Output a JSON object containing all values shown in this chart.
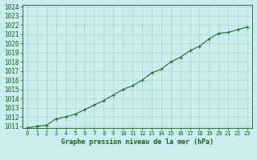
{
  "x": [
    0,
    1,
    2,
    3,
    4,
    5,
    6,
    7,
    8,
    9,
    10,
    11,
    12,
    13,
    14,
    15,
    16,
    17,
    18,
    19,
    20,
    21,
    22,
    23
  ],
  "y": [
    1010.8,
    1011.0,
    1011.1,
    1011.8,
    1012.0,
    1012.3,
    1012.8,
    1013.3,
    1013.8,
    1014.4,
    1015.0,
    1015.4,
    1016.0,
    1016.8,
    1017.2,
    1018.0,
    1018.5,
    1019.2,
    1019.7,
    1020.5,
    1021.1,
    1021.2,
    1021.5,
    1021.8
  ],
  "line_color": "#2d6a2d",
  "marker": "+",
  "bg_color": "#c8eef0",
  "grid_color": "#b0d8db",
  "xlabel": "Graphe pression niveau de la mer (hPa)",
  "xlabel_color": "#1a5c1a",
  "tick_color": "#1a5c1a",
  "ylim_min": 1011,
  "ylim_max": 1024,
  "xlim_min": 0,
  "xlim_max": 23,
  "yticks": [
    1011,
    1012,
    1013,
    1014,
    1015,
    1016,
    1017,
    1018,
    1019,
    1020,
    1021,
    1022,
    1023,
    1024
  ],
  "xticks": [
    0,
    1,
    2,
    3,
    4,
    5,
    6,
    7,
    8,
    9,
    10,
    11,
    12,
    13,
    14,
    15,
    16,
    17,
    18,
    19,
    20,
    21,
    22,
    23
  ]
}
